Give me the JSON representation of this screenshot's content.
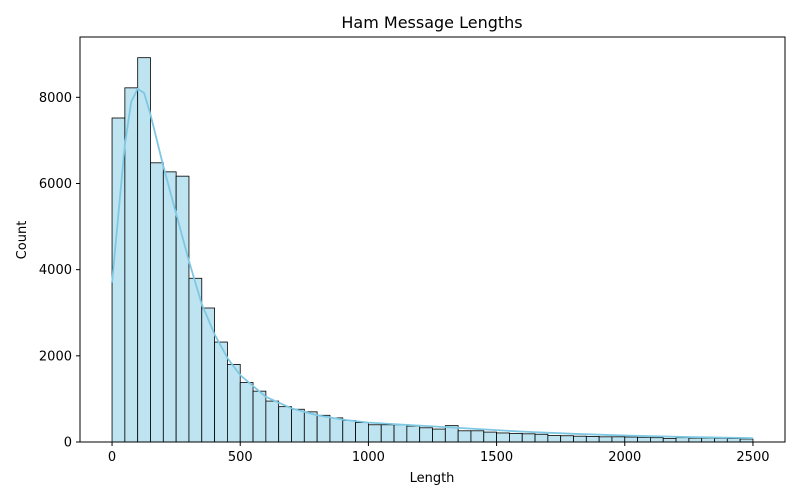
{
  "chart_data": {
    "type": "bar",
    "title": "Ham Message Lengths",
    "xlabel": "Length",
    "ylabel": "Count",
    "xlim": [
      -125,
      2625
    ],
    "ylim": [
      0,
      9400
    ],
    "bin_width": 50,
    "bin_start": 0,
    "values": [
      7520,
      8220,
      8920,
      6480,
      6270,
      6170,
      3800,
      3110,
      2320,
      1800,
      1380,
      1180,
      950,
      820,
      760,
      700,
      620,
      560,
      500,
      450,
      400,
      400,
      400,
      370,
      330,
      300,
      380,
      260,
      260,
      230,
      210,
      200,
      190,
      180,
      150,
      145,
      135,
      130,
      120,
      120,
      115,
      110,
      100,
      80,
      100,
      90,
      90,
      85,
      80,
      70
    ],
    "kde": {
      "x": [
        0,
        25,
        50,
        75,
        100,
        125,
        150,
        175,
        200,
        250,
        300,
        350,
        400,
        450,
        500,
        600,
        700,
        800,
        900,
        1000,
        1200,
        1400,
        1600,
        1800,
        2000,
        2200,
        2500
      ],
      "y": [
        3700,
        5300,
        6900,
        7900,
        8200,
        8100,
        7600,
        7000,
        6400,
        5300,
        4200,
        3200,
        2500,
        1950,
        1550,
        1050,
        780,
        620,
        520,
        450,
        380,
        310,
        240,
        190,
        150,
        120,
        90
      ]
    },
    "xticks": [
      0,
      500,
      1000,
      1500,
      2000,
      2500
    ],
    "yticks": [
      0,
      2000,
      4000,
      6000,
      8000
    ],
    "bar_color": "#bde4f0",
    "bar_edge_color": "#000000",
    "kde_color": "#7ec8e3",
    "grid": false,
    "legend": "none"
  }
}
